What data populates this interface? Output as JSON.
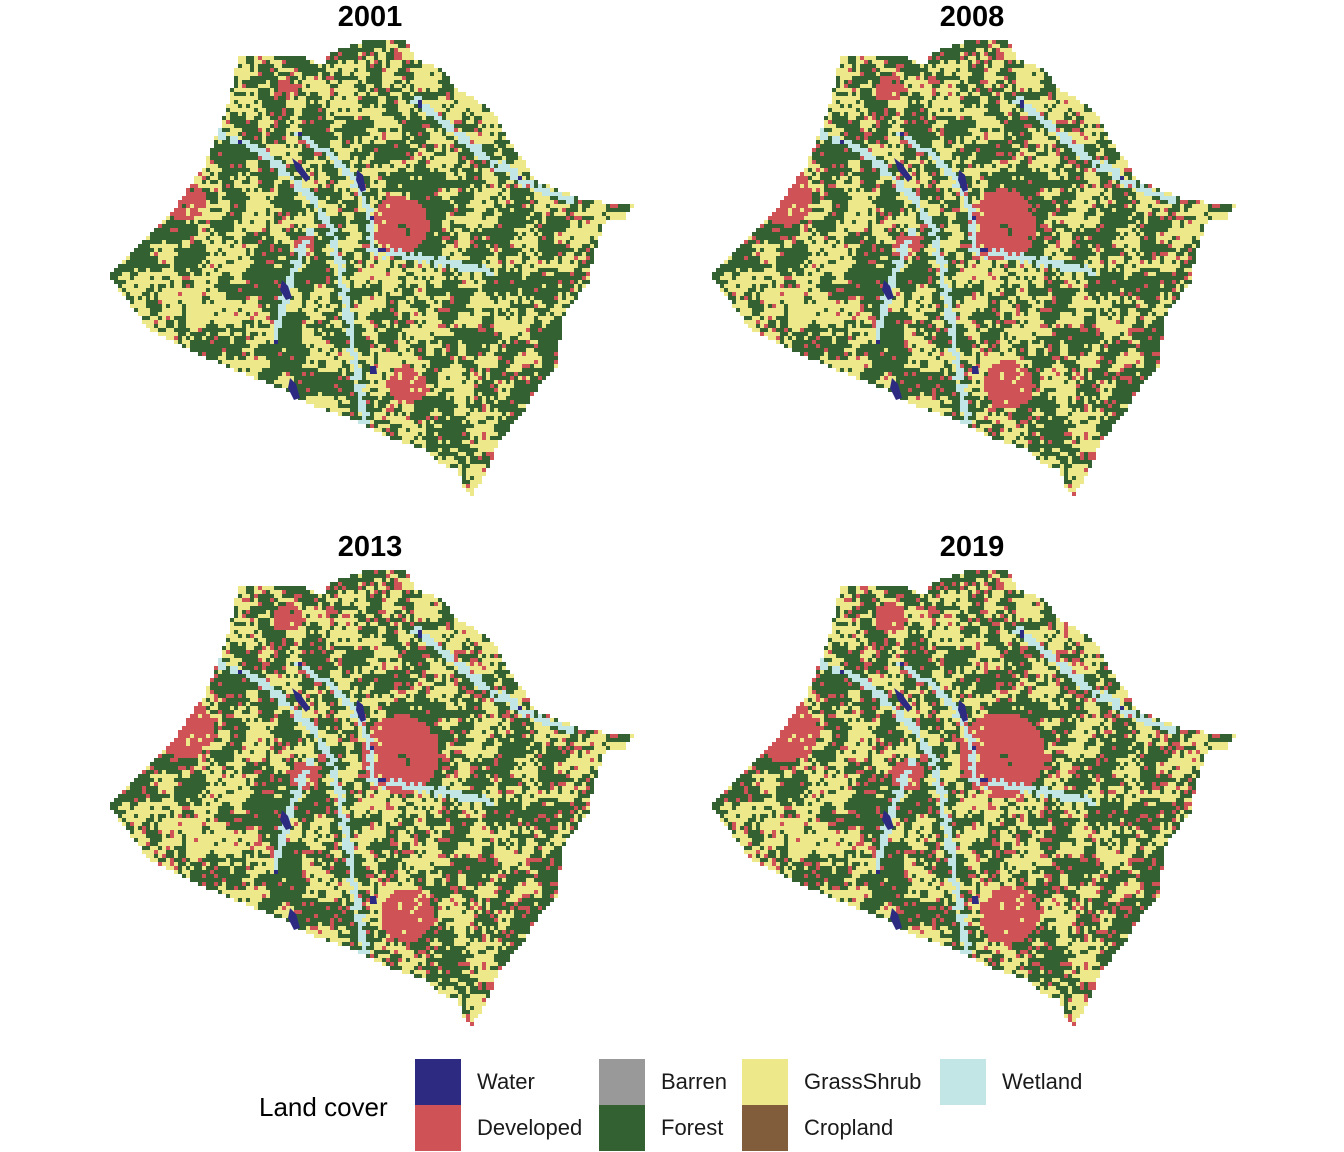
{
  "panels": [
    {
      "title": "2001"
    },
    {
      "title": "2008"
    },
    {
      "title": "2013"
    },
    {
      "title": "2019"
    }
  ],
  "legend": {
    "title": "Land cover",
    "items": [
      {
        "label": "Water",
        "color": "#2d2a82"
      },
      {
        "label": "Developed",
        "color": "#cf5257"
      },
      {
        "label": "Barren",
        "color": "#999999"
      },
      {
        "label": "Forest",
        "color": "#336132"
      },
      {
        "label": "GrassShrub",
        "color": "#ede98a"
      },
      {
        "label": "Cropland",
        "color": "#815d3c"
      },
      {
        "label": "Wetland",
        "color": "#c2e6e6"
      }
    ]
  }
}
